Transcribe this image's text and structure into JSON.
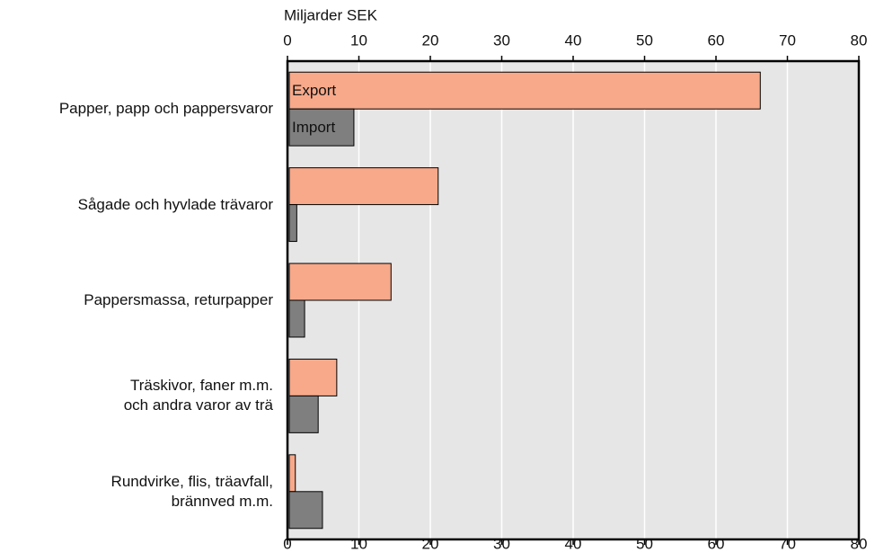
{
  "chart_data": {
    "type": "bar",
    "orientation": "horizontal",
    "x_label": "Miljarder SEK",
    "categories": [
      "Papper, papp och pappersvaror",
      "Sågade och hyvlade trävaror",
      "Pappersmassa, returpapper",
      "Träskivor, faner m.m.\noch andra varor av trä",
      "Rundvirke, flis, träavfall,\nbrännved m.m."
    ],
    "series": [
      {
        "name": "Export",
        "color": "#f7a98a",
        "values": [
          66.2,
          21.1,
          14.5,
          6.9,
          1.1
        ]
      },
      {
        "name": "Import",
        "color": "#7f7f7f",
        "values": [
          9.3,
          1.3,
          2.4,
          4.3,
          4.9
        ]
      }
    ],
    "xlim": [
      0,
      80
    ],
    "xticks": [
      0,
      10,
      20,
      30,
      40,
      50,
      60,
      70,
      80
    ],
    "grid": true
  }
}
